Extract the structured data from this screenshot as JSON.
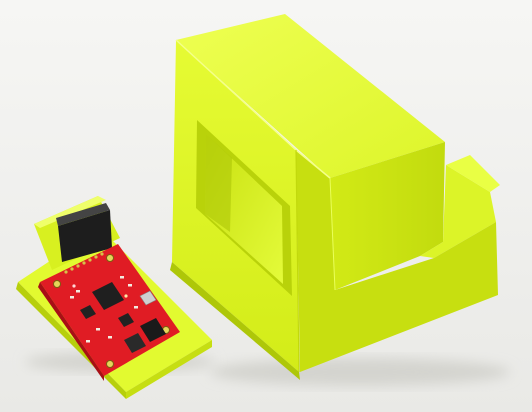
{
  "photo": {
    "subjects": [
      "circuit-board-on-printed-base",
      "printed-enclosure"
    ],
    "colors": {
      "background": "#f1f1ef",
      "shadow": "#d6d6d2",
      "plastic_light": "#eaff3c",
      "plastic_mid": "#d9f21e",
      "plastic_dark": "#b6cf0c",
      "plastic_deep": "#9fb806",
      "pcb_red": "#e11a22",
      "pcb_dark": "#b3121a",
      "chip_black": "#1e1e1e",
      "silver": "#c9c9c9"
    }
  }
}
